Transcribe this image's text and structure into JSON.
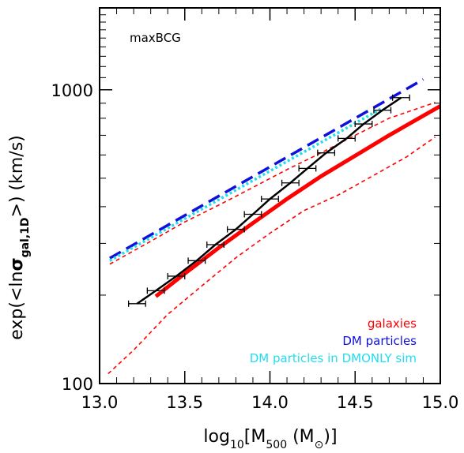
{
  "chart_data": {
    "type": "line",
    "annotation": "maxBCG",
    "xlabel": "log10[M500 (M⊙)]",
    "ylabel": "exp(<lnσgal,1D>) (km/s)",
    "xlim": [
      13.0,
      15.0
    ],
    "ylim": [
      100,
      1900
    ],
    "yscale": "log",
    "x_ticks": [
      13.0,
      13.5,
      14.0,
      14.5,
      15.0
    ],
    "x_tick_labels": [
      "13.0",
      "13.5",
      "14.0",
      "14.5",
      "15.0"
    ],
    "y_ticks": [
      100,
      1000
    ],
    "y_tick_labels": [
      "100",
      "1000"
    ],
    "grid": false,
    "legend": {
      "placement": "bottom-right",
      "entries": [
        {
          "label": "galaxies",
          "color": "#ff0000"
        },
        {
          "label": "DM particles",
          "color": "#1010dd"
        },
        {
          "label": "DM particles in DMONLY sim",
          "color": "#22ddee"
        }
      ]
    },
    "series": [
      {
        "name": "galaxies",
        "color": "#ff0000",
        "style": "solid",
        "x": [
          13.33,
          13.5,
          13.7,
          13.9,
          14.1,
          14.3,
          14.5,
          14.7,
          15.0
        ],
        "y": [
          198,
          237,
          290,
          352,
          425,
          508,
          596,
          700,
          880
        ]
      },
      {
        "name": "galaxies upper scatter",
        "color": "#ff0000",
        "style": "dashed",
        "x": [
          13.06,
          13.3,
          13.5,
          13.7,
          13.9,
          14.1,
          14.3,
          14.5,
          14.7,
          14.97
        ],
        "y": [
          255,
          305,
          355,
          405,
          465,
          535,
          610,
          700,
          800,
          905
        ]
      },
      {
        "name": "galaxies lower scatter",
        "color": "#ff0000",
        "style": "dashed",
        "x": [
          13.05,
          13.2,
          13.4,
          13.6,
          13.8,
          14.0,
          14.2,
          14.4,
          14.6,
          14.8,
          14.97
        ],
        "y": [
          108,
          130,
          172,
          215,
          268,
          325,
          388,
          438,
          508,
          590,
          690
        ]
      },
      {
        "name": "DM particles",
        "color": "#1010dd",
        "style": "dashed",
        "x": [
          13.06,
          14.9
        ],
        "y": [
          267,
          1085
        ]
      },
      {
        "name": "DM particles in DMONLY sim",
        "color": "#22ddee",
        "style": "dashed",
        "x": [
          13.06,
          14.65
        ],
        "y": [
          262,
          860
        ]
      },
      {
        "name": "maxBCG",
        "color": "#000000",
        "style": "solid-errorbars",
        "x": [
          13.22,
          13.33,
          13.45,
          13.57,
          13.68,
          13.8,
          13.9,
          14.0,
          14.12,
          14.22,
          14.33,
          14.45,
          14.55,
          14.66,
          14.77
        ],
        "y": [
          187,
          207,
          232,
          262,
          297,
          335,
          377,
          425,
          482,
          540,
          610,
          683,
          765,
          852,
          940
        ],
        "xerr": [
          0.05,
          0.05,
          0.05,
          0.05,
          0.05,
          0.05,
          0.05,
          0.05,
          0.05,
          0.05,
          0.05,
          0.05,
          0.05,
          0.05,
          0.05
        ]
      }
    ]
  }
}
